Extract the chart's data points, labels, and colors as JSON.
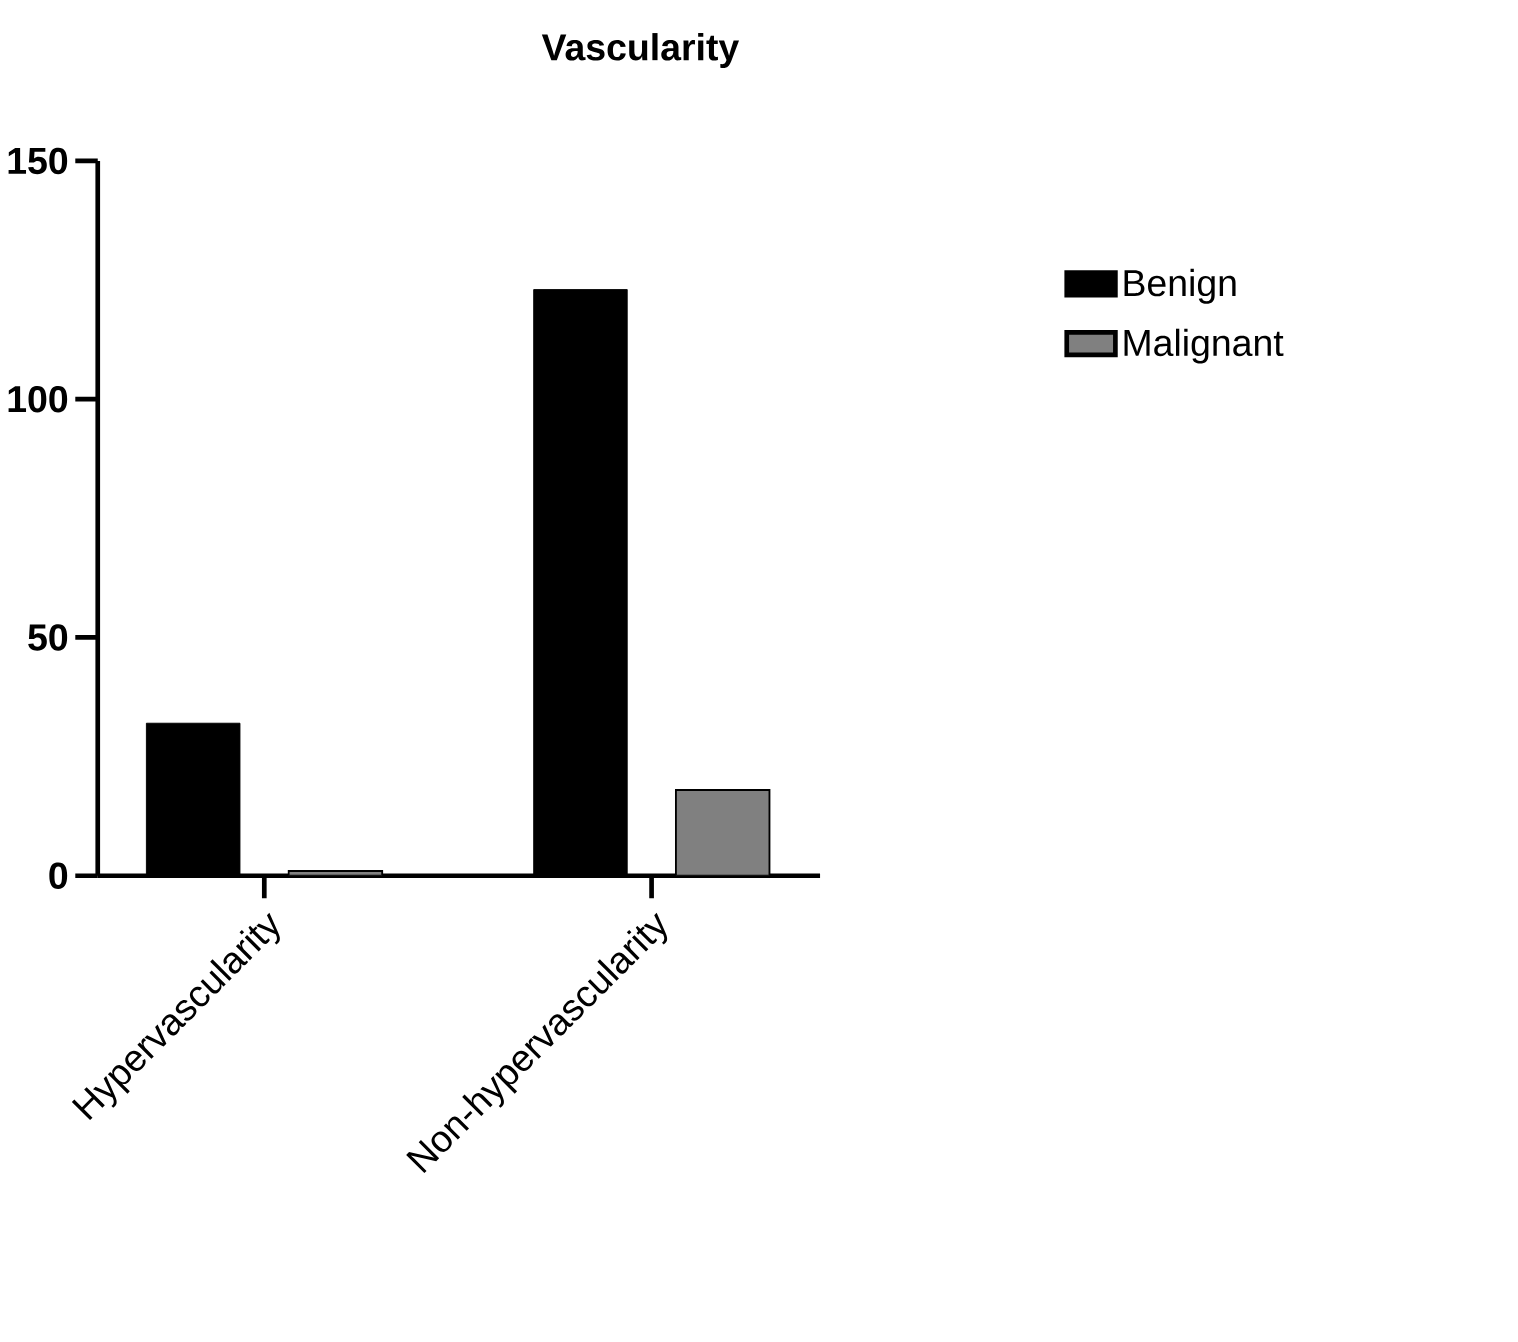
{
  "chart_data": {
    "type": "bar",
    "title": "Vascularity",
    "categories": [
      "Hypervascularity",
      "Non-hypervascularity"
    ],
    "series": [
      {
        "name": "Benign",
        "color": "#000000",
        "values": [
          32,
          123
        ]
      },
      {
        "name": "Malignant",
        "color": "#808080",
        "values": [
          1,
          18
        ]
      }
    ],
    "ylim": [
      0,
      150
    ],
    "yticks": [
      0,
      50,
      100,
      150
    ],
    "grid": false,
    "legend": "right"
  }
}
